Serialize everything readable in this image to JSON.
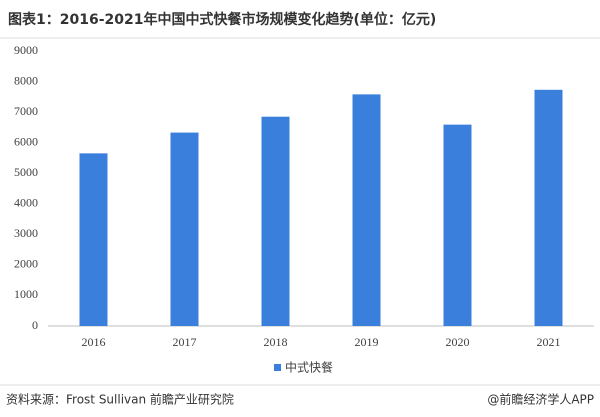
{
  "chart_data": {
    "type": "bar",
    "title": "图表1：2016-2021年中国中式快餐市场规模变化趋势(单位：亿元)",
    "categories": [
      "2016",
      "2017",
      "2018",
      "2019",
      "2020",
      "2021"
    ],
    "series": [
      {
        "name": "中式快餐",
        "color": "#3b7fdc",
        "values": [
          5650,
          6330,
          6850,
          7580,
          6590,
          7730
        ]
      }
    ],
    "ylim": [
      0,
      9000
    ],
    "yticks": [
      0,
      1000,
      2000,
      3000,
      4000,
      5000,
      6000,
      7000,
      8000,
      9000
    ],
    "grid": false,
    "legend": "bottom",
    "source": "资料来源：Frost Sullivan 前瞻产业研究院",
    "credit": "@前瞻经济学人APP"
  }
}
